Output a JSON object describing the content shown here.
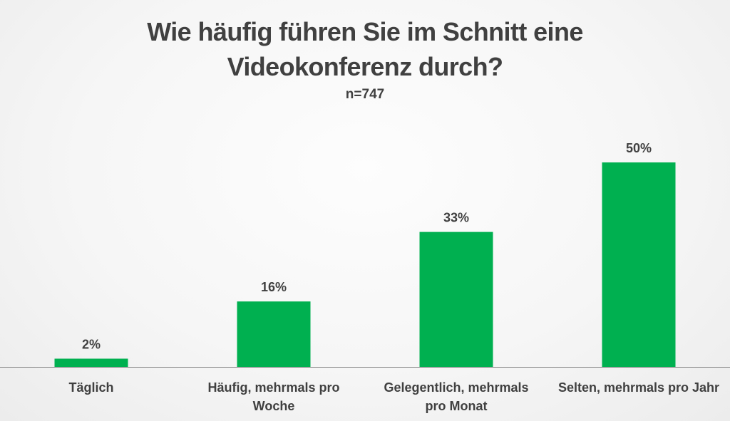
{
  "chart_data": {
    "type": "bar",
    "title_lines": [
      "Wie häufig führen Sie im Schnitt eine",
      "Videokonferenz durch?"
    ],
    "subtitle": "n=747",
    "categories": [
      [
        "Täglich"
      ],
      [
        "Häufig, mehrmals pro",
        "Woche"
      ],
      [
        "Gelegentlich, mehrmals",
        "pro Monat"
      ],
      [
        "Selten, mehrmals pro Jahr"
      ]
    ],
    "values": [
      2,
      16,
      33,
      50
    ],
    "value_labels": [
      "2%",
      "16%",
      "33%",
      "50%"
    ],
    "unit": "%",
    "xlabel": "",
    "ylabel": "",
    "ylim": [
      0,
      50
    ],
    "grid": false,
    "legend": false,
    "colors": {
      "bar": "#00b050",
      "text": "#404040",
      "axis": "#7f7f7f"
    }
  }
}
